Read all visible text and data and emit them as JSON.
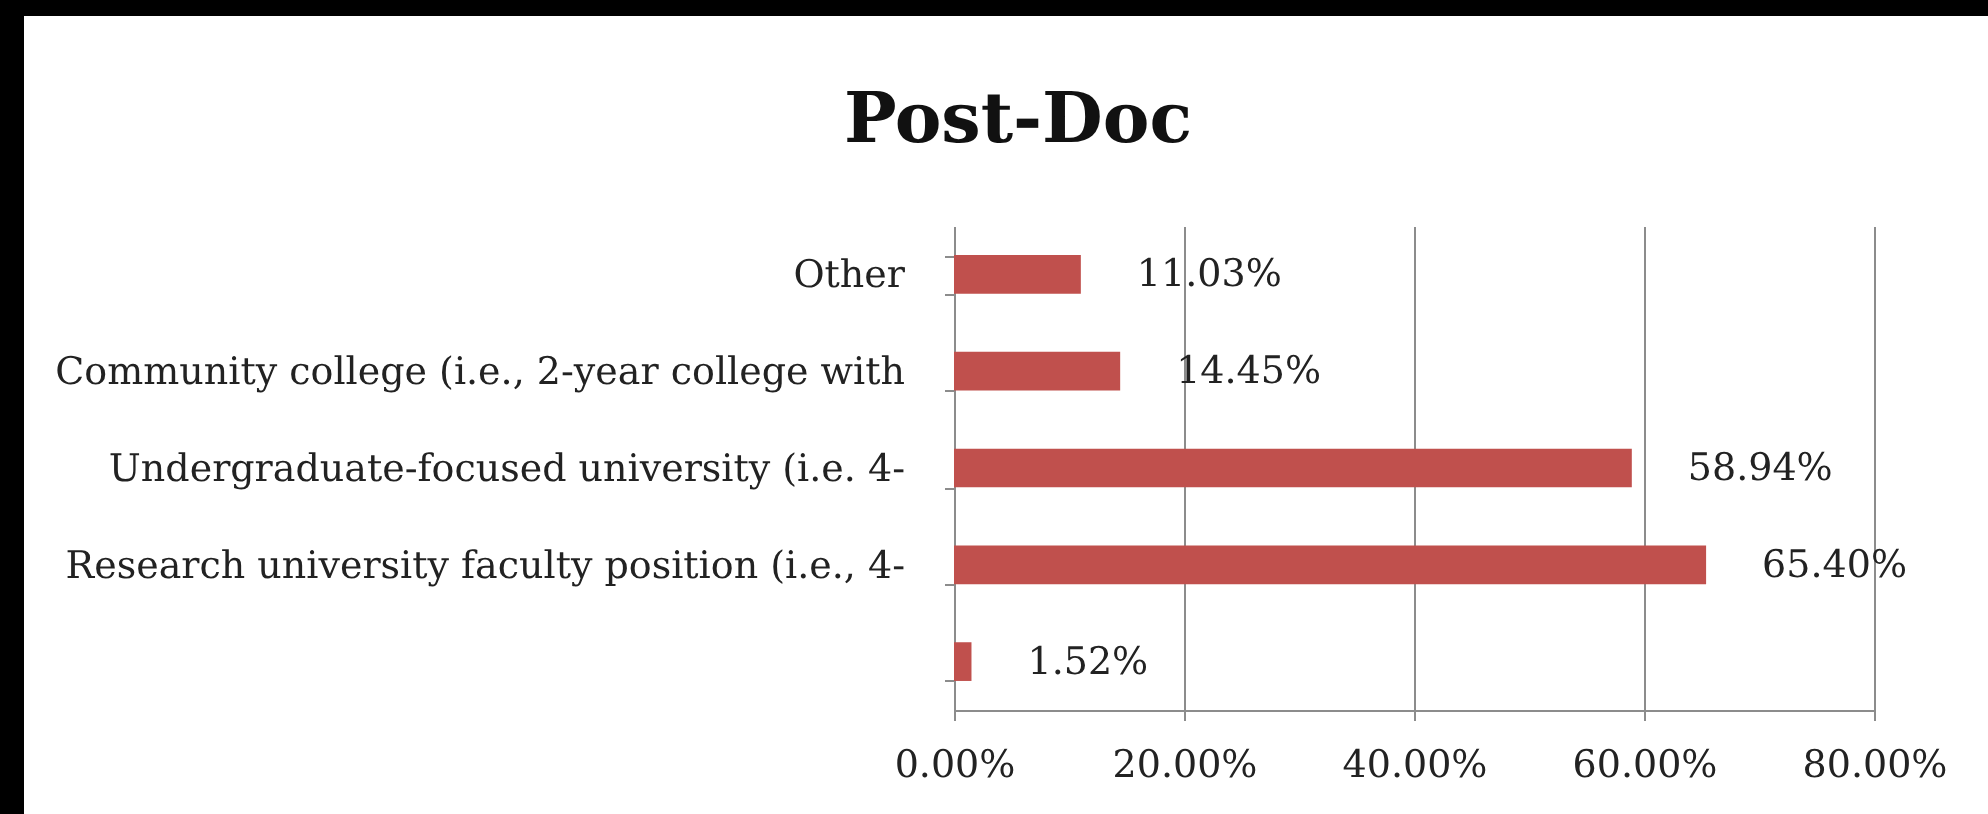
{
  "chart_data": {
    "type": "bar",
    "orientation": "horizontal",
    "title": "Post-Doc",
    "categories": [
      "Other",
      "Community college (i.e., 2-year college with",
      "Undergraduate-focused university (i.e. 4-",
      "Research university faculty position (i.e., 4-",
      null
    ],
    "values": [
      11.03,
      14.45,
      58.94,
      65.4,
      1.52
    ],
    "value_labels": [
      "11.03%",
      "14.45%",
      "58.94%",
      "65.40%",
      "1.52%"
    ],
    "color": "#c0504d",
    "xlim": [
      0,
      80
    ],
    "xticks": [
      {
        "value": 0,
        "label": "0.00%"
      },
      {
        "value": 20,
        "label": "20.00%"
      },
      {
        "value": 40,
        "label": "40.00%"
      },
      {
        "value": 60,
        "label": "60.00%"
      },
      {
        "value": 80,
        "label": "80.00%"
      }
    ],
    "grid": "x"
  }
}
